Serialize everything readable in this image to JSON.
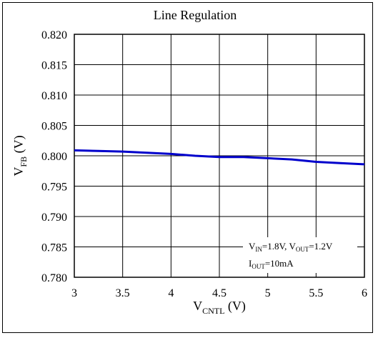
{
  "chart_data": {
    "type": "line",
    "title": "Line Regulation",
    "xlabel": {
      "main": "V",
      "sub": "CNTL",
      "suffix": " (V)"
    },
    "ylabel": {
      "main": "V",
      "sub": "FB",
      "suffix": " (V)"
    },
    "xlim": [
      3,
      6
    ],
    "ylim": [
      0.78,
      0.82
    ],
    "xticks": [
      3,
      3.5,
      4,
      4.5,
      5,
      5.5,
      6
    ],
    "xtick_labels": [
      "3",
      "3.5",
      "4",
      "4.5",
      "5",
      "5.5",
      "6"
    ],
    "yticks": [
      0.78,
      0.785,
      0.79,
      0.795,
      0.8,
      0.805,
      0.81,
      0.815,
      0.82
    ],
    "ytick_labels": [
      "0.780",
      "0.785",
      "0.790",
      "0.795",
      "0.800",
      "0.805",
      "0.810",
      "0.815",
      "0.820"
    ],
    "grid": true,
    "series": [
      {
        "color": "#0000cc",
        "x": [
          3,
          3.25,
          3.5,
          3.75,
          4,
          4.25,
          4.5,
          4.75,
          5,
          5.25,
          5.5,
          5.75,
          6
        ],
        "y": [
          0.8009,
          0.8008,
          0.8007,
          0.8005,
          0.8003,
          0.8,
          0.7998,
          0.7998,
          0.7996,
          0.7994,
          0.799,
          0.7988,
          0.7986
        ]
      }
    ],
    "annotation": {
      "line1": [
        {
          "t": "V",
          "sub": false
        },
        {
          "t": "IN",
          "sub": true
        },
        {
          "t": "=1.8V, V",
          "sub": false
        },
        {
          "t": "OUT",
          "sub": true
        },
        {
          "t": "=1.2V",
          "sub": false
        }
      ],
      "line2": [
        {
          "t": "I",
          "sub": false
        },
        {
          "t": "OUT",
          "sub": true
        },
        {
          "t": "=10mA",
          "sub": false
        }
      ]
    }
  }
}
